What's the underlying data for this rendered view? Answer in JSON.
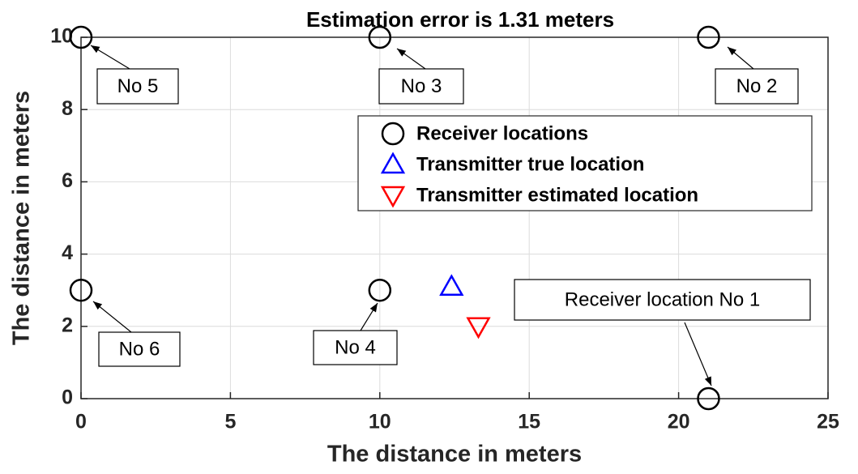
{
  "chart_data": {
    "type": "scatter",
    "title": "Estimation error is 1.31 meters",
    "xlabel": "The distance in meters",
    "ylabel": "The distance in meters",
    "xlim": [
      0,
      25
    ],
    "xticks": [
      0,
      5,
      10,
      15,
      20,
      25
    ],
    "ylim": [
      0,
      10
    ],
    "yticks": [
      0,
      2,
      4,
      6,
      8,
      10
    ],
    "grid": true,
    "legend": "upper right",
    "series": [
      {
        "name": "Receiver locations",
        "color": "#000000",
        "marker": "circle",
        "x": [
          21,
          21,
          10,
          10,
          0,
          0
        ],
        "values": [
          0,
          10,
          10,
          3,
          10,
          3
        ]
      },
      {
        "name": "Transmitter true location",
        "color": "#0000ff",
        "marker": "triangle-up",
        "x": [
          12.4
        ],
        "values": [
          3.1
        ]
      },
      {
        "name": "Transmitter estimated location",
        "color": "#ff0000",
        "marker": "triangle-down",
        "x": [
          13.3
        ],
        "values": [
          2.0
        ]
      }
    ],
    "annotations": [
      "Receiver location No 1",
      "No 2",
      "No 3",
      "No 4",
      "No 5",
      "No 6"
    ]
  }
}
